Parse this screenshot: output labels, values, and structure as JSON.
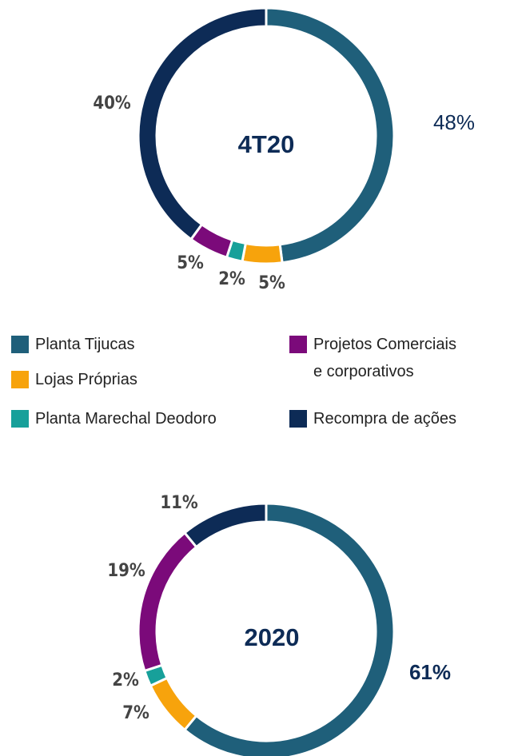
{
  "legend": {
    "categories": [
      "Planta Tijucas",
      "Lojas Próprias",
      "Planta Marechal Deodoro",
      "Projetos Comerciais e corporativos",
      "Recompra de ações"
    ],
    "colors": [
      "#1f5f7a",
      "#f7a30c",
      "#17a09a",
      "#7b0a7a",
      "#0d2b56"
    ]
  },
  "chart_data": [
    {
      "type": "donut",
      "title": "4T20",
      "values": [
        48,
        5,
        2,
        5,
        40
      ],
      "value_labels": [
        "48%",
        "5%",
        "2%",
        "5%",
        "40%"
      ]
    },
    {
      "type": "donut",
      "title": "2020",
      "values": [
        61,
        7,
        2,
        19,
        11
      ],
      "value_labels": [
        "61%",
        "7%",
        "2%",
        "19%",
        "11%"
      ]
    }
  ]
}
